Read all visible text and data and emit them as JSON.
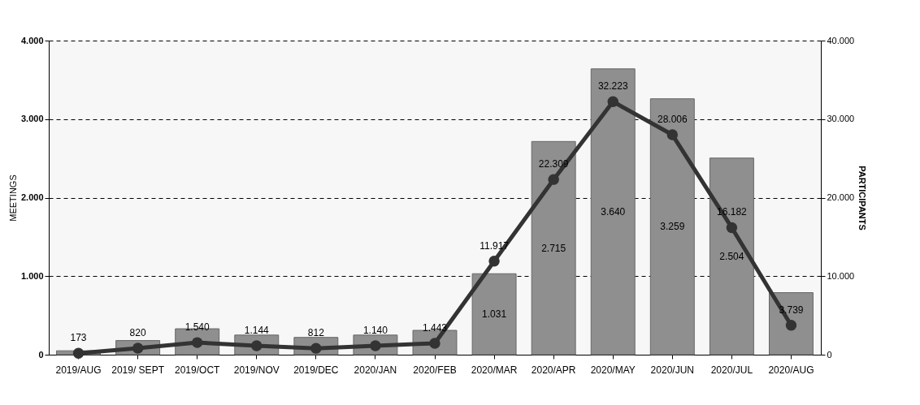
{
  "chart_data": {
    "type": "bar",
    "ylabel": "MEETINGS",
    "y2label": "PARTICIPANTS",
    "categories": [
      "2019/AUG",
      "2019/ SEPT",
      "2019/OCT",
      "2019/NOV",
      "2019/DEC",
      "2020/JAN",
      "2020/FEB",
      "2020/MAR",
      "2020/APR",
      "2020/MAY",
      "2020/JUN",
      "2020/JUL",
      "2020/AUG"
    ],
    "series": [
      {
        "color": "#8f8f8f",
        "values": [
          50,
          180,
          330,
          250,
          220,
          250,
          310,
          1031,
          2715,
          3640,
          3259,
          2504,
          790
        ],
        "value_labels": [
          null,
          null,
          null,
          null,
          null,
          null,
          null,
          "1.031",
          "2.715",
          "3.640",
          "3.259",
          "2.504",
          null
        ]
      },
      {
        "type": "line",
        "axis": "y2",
        "color": "#333333",
        "values": [
          173,
          820,
          1540,
          1144,
          812,
          1140,
          1443,
          11917,
          22309,
          32223,
          28006,
          16182,
          3739
        ],
        "value_labels": [
          "173",
          "820",
          "1.540",
          "1.144",
          "812",
          "1.140",
          "1.443",
          "11.917",
          "22.309",
          "32.223",
          "28.006",
          "16.182",
          "3.739"
        ]
      }
    ],
    "ylim": [
      0,
      4000
    ],
    "yticks": [
      0,
      {
        "value": 1000,
        "label": "1.000"
      },
      {
        "value": 2000,
        "label": "2.000"
      },
      {
        "value": 3000,
        "label": "3.000"
      },
      {
        "value": 4000,
        "label": "4.000"
      }
    ],
    "y2lim": [
      0,
      40000
    ],
    "y2ticks": [
      0,
      {
        "value": 10000,
        "label": "10.000"
      },
      {
        "value": 20000,
        "label": "20.000"
      },
      {
        "value": 30000,
        "label": "30.000"
      },
      {
        "value": 40000,
        "label": "40.000"
      }
    ],
    "grid": "y",
    "marker": "circle",
    "line_style": "solid"
  }
}
